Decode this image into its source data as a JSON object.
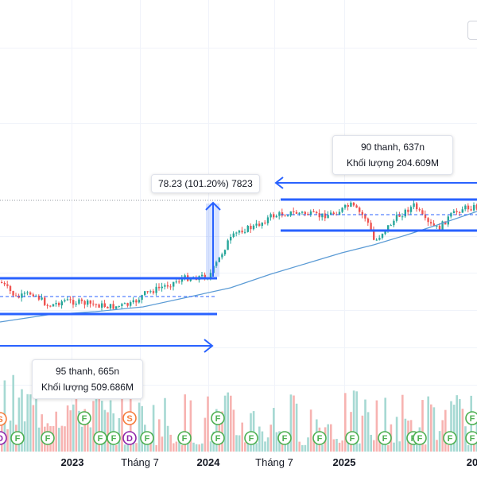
{
  "chart_data": {
    "type": "candlestick",
    "x_axis_labels": [
      "2023",
      "Tháng 7",
      "2024",
      "Tháng 7",
      "2025",
      "20"
    ],
    "bold_year_labels": [
      "2023",
      "2024",
      "2025",
      "20"
    ],
    "annotations": {
      "range_left": {
        "bars_text": "95 thanh, 665n",
        "volume_text": "Khối lượng 509.686M"
      },
      "range_right": {
        "bars_text": "90 thanh, 637n",
        "volume_text": "Khối lượng 204.609M"
      },
      "price_change": {
        "text": "78.23 (101.20%) 7823"
      }
    },
    "event_markers": [
      {
        "letter": "S",
        "kind": "split"
      },
      {
        "letter": "D",
        "kind": "dividend"
      },
      {
        "letter": "F",
        "kind": "financials"
      },
      {
        "letter": "F",
        "kind": "financials"
      },
      {
        "letter": "F",
        "kind": "financials"
      },
      {
        "letter": "F",
        "kind": "financials"
      },
      {
        "letter": "F",
        "kind": "financials"
      },
      {
        "letter": "S",
        "kind": "split"
      },
      {
        "letter": "D",
        "kind": "dividend"
      },
      {
        "letter": "F",
        "kind": "financials"
      },
      {
        "letter": "F",
        "kind": "financials"
      },
      {
        "letter": "F",
        "kind": "financials"
      },
      {
        "letter": "F",
        "kind": "financials"
      },
      {
        "letter": "F",
        "kind": "financials"
      },
      {
        "letter": "F",
        "kind": "financials"
      },
      {
        "letter": "F",
        "kind": "financials"
      },
      {
        "letter": "F",
        "kind": "financials"
      },
      {
        "letter": "F",
        "kind": "financials"
      },
      {
        "letter": "F",
        "kind": "financials"
      },
      {
        "letter": "F",
        "kind": "financials"
      },
      {
        "letter": "F",
        "kind": "financials"
      },
      {
        "letter": "F",
        "kind": "financials"
      },
      {
        "letter": "F",
        "kind": "financials"
      }
    ],
    "colors": {
      "up": "#26a69a",
      "down": "#ef5350",
      "tool": "#2962ff",
      "ma": "#5b9bd5",
      "up_vol": "#a6d9d3",
      "down_vol": "#f7b3b1",
      "split": "#f57c3a",
      "dividend": "#8e24aa",
      "financials": "#4caf50"
    }
  }
}
